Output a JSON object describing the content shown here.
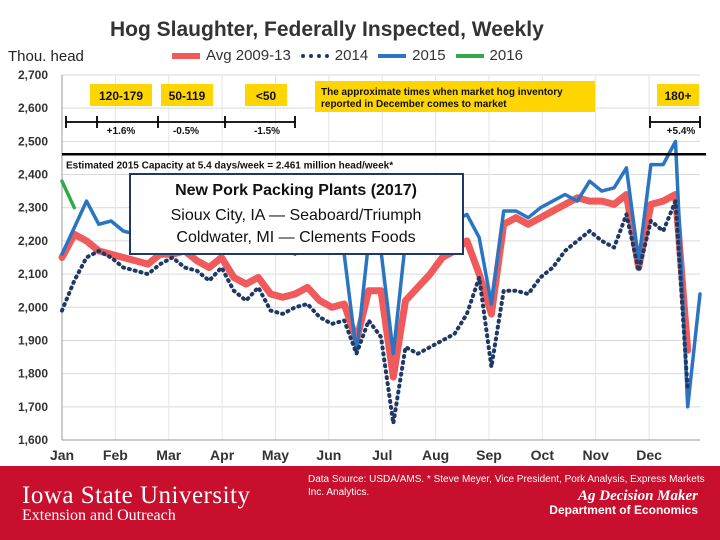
{
  "title": "Hog Slaughter, Federally Inspected, Weekly",
  "unit": "Thou. head",
  "legend": [
    {
      "label": "Avg 2009-13",
      "color": "#f05a5a"
    },
    {
      "label": "2014",
      "color": "#1f3864"
    },
    {
      "label": "2015",
      "color": "#2a75c1"
    },
    {
      "label": "2016",
      "color": "#2eaa4a"
    }
  ],
  "chart_data": {
    "type": "line",
    "x_tick_labels": [
      "Jan",
      "Feb",
      "Mar",
      "Apr",
      "May",
      "Jun",
      "Jul",
      "Aug",
      "Sep",
      "Oct",
      "Nov",
      "Dec"
    ],
    "y_ticks": [
      "1,600",
      "1,700",
      "1,800",
      "1,900",
      "2,000",
      "2,100",
      "2,200",
      "2,300",
      "2,400",
      "2,500",
      "2,600",
      "2,700"
    ],
    "ylim": [
      1600,
      2700
    ],
    "xlim": [
      1,
      53
    ],
    "series": [
      {
        "name": "Avg 2009-13",
        "color": "#f05a5a",
        "x": [
          1,
          2,
          3,
          4,
          5,
          6,
          7,
          8,
          9,
          10,
          11,
          12,
          13,
          14,
          15,
          16,
          17,
          18,
          19,
          20,
          21,
          22,
          23,
          24,
          25,
          26,
          27,
          28,
          29,
          30,
          31,
          32,
          33,
          34,
          35,
          36,
          37,
          38,
          39,
          40,
          41,
          42,
          43,
          44,
          45,
          46,
          47,
          48,
          49,
          50,
          51,
          52
        ],
        "y": [
          2150,
          2220,
          2200,
          2170,
          2160,
          2150,
          2140,
          2130,
          2160,
          2160,
          2170,
          2140,
          2120,
          2150,
          2090,
          2070,
          2090,
          2040,
          2030,
          2040,
          2060,
          2020,
          2000,
          2010,
          1900,
          2050,
          2050,
          1790,
          2020,
          2060,
          2100,
          2150,
          2170,
          2200,
          2100,
          1980,
          2250,
          2270,
          2250,
          2270,
          2290,
          2310,
          2330,
          2320,
          2320,
          2310,
          2340,
          2120,
          2310,
          2320,
          2340,
          1870
        ]
      },
      {
        "name": "2014",
        "color": "#1f3864",
        "x": [
          1,
          2,
          3,
          4,
          5,
          6,
          7,
          8,
          9,
          10,
          11,
          12,
          13,
          14,
          15,
          16,
          17,
          18,
          19,
          20,
          21,
          22,
          23,
          24,
          25,
          26,
          27,
          28,
          29,
          30,
          31,
          32,
          33,
          34,
          35,
          36,
          37,
          38,
          39,
          40,
          41,
          42,
          43,
          44,
          45,
          46,
          47,
          48,
          49,
          50,
          51,
          52
        ],
        "y": [
          1990,
          2080,
          2150,
          2170,
          2150,
          2120,
          2110,
          2100,
          2130,
          2150,
          2120,
          2110,
          2080,
          2120,
          2050,
          2020,
          2060,
          1990,
          1980,
          2000,
          2010,
          1970,
          1950,
          1960,
          1860,
          1960,
          1910,
          1650,
          1880,
          1860,
          1880,
          1900,
          1920,
          1980,
          2090,
          1820,
          2050,
          2050,
          2040,
          2090,
          2120,
          2170,
          2200,
          2230,
          2200,
          2180,
          2280,
          2110,
          2260,
          2230,
          2320,
          1750
        ]
      },
      {
        "name": "2015",
        "color": "#2a75c1",
        "x": [
          1,
          2,
          3,
          4,
          5,
          6,
          7,
          8,
          9,
          10,
          11,
          12,
          13,
          14,
          15,
          16,
          17,
          18,
          19,
          20,
          21,
          22,
          23,
          24,
          25,
          26,
          27,
          28,
          29,
          30,
          31,
          32,
          33,
          34,
          35,
          36,
          37,
          38,
          39,
          40,
          41,
          42,
          43,
          44,
          45,
          46,
          47,
          48,
          49,
          50,
          51,
          52,
          53
        ],
        "y": [
          2160,
          2240,
          2320,
          2250,
          2260,
          2230,
          2220,
          2230,
          2260,
          2250,
          2270,
          2240,
          2250,
          2260,
          2230,
          2200,
          2230,
          2190,
          2180,
          2160,
          2190,
          2180,
          2200,
          2160,
          1860,
          2200,
          2170,
          1860,
          2200,
          2220,
          2210,
          2240,
          2260,
          2280,
          2210,
          2010,
          2290,
          2290,
          2270,
          2300,
          2320,
          2340,
          2320,
          2380,
          2350,
          2360,
          2420,
          2140,
          2430,
          2430,
          2500,
          1700,
          2040
        ]
      },
      {
        "name": "2016",
        "color": "#2eaa4a",
        "x": [
          1,
          2
        ],
        "y": [
          2380,
          2300
        ]
      }
    ],
    "capacity_line": {
      "y": 2461,
      "label": "Estimated 2015 Capacity at 5.4 days/week = 2.461 million head/week*"
    },
    "annotation": {
      "title": "New Pork Packing Plants (2017)",
      "lines": [
        "Sioux City, IA — Seaboard/Triumph",
        "Coldwater, MI — Clements Foods"
      ]
    },
    "periods": [
      {
        "label": "120-179",
        "change": "+1.6%"
      },
      {
        "label": "50-119",
        "change": "-0.5%"
      },
      {
        "label": "<50",
        "change": "-1.5%"
      },
      {
        "label": "180+",
        "change": "+5.4%"
      }
    ],
    "note": "The approximate times when market hog inventory reported in December comes to market",
    "grid": true,
    "legend_position": "top"
  },
  "footer": {
    "university": "Iowa State University",
    "unit": "Extension and Outreach",
    "source": "Data Source: USDA/AMS. * Steve Meyer, Vice President, Pork Analysis, Express Markets Inc. Analytics.",
    "brand": "Ag Decision Maker",
    "department": "Department of Economics"
  }
}
